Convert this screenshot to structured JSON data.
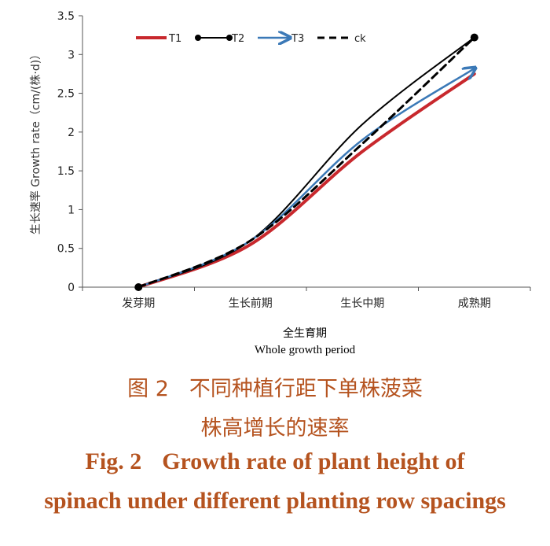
{
  "chart_data": {
    "type": "line",
    "categories": [
      "发芽期",
      "生长前期",
      "生长中期",
      "成熟期"
    ],
    "series": [
      {
        "name": "T1",
        "values": [
          0,
          0.55,
          1.75,
          2.75
        ],
        "color": "#c8282d"
      },
      {
        "name": "T2",
        "values": [
          0,
          0.6,
          2.1,
          3.22
        ],
        "color": "#000000"
      },
      {
        "name": "T3",
        "values": [
          0,
          0.6,
          1.9,
          2.82
        ],
        "color": "#3b79b7"
      },
      {
        "name": "ck",
        "values": [
          0,
          0.6,
          1.85,
          3.22
        ],
        "color": "#000000"
      }
    ],
    "ylim": [
      0,
      3.5
    ],
    "yticks": [
      "0",
      "0.5",
      "1",
      "1.5",
      "2",
      "2.5",
      "3",
      "3.5"
    ],
    "ylabel": "生长速率 Growth rate（cm/(株·d)）",
    "xlabel_cn": "全生育期",
    "xlabel_en": "Whole growth period",
    "legend_position": "top"
  },
  "caption": {
    "cn_fig": "图 2",
    "cn_line1": "不同种植行距下单株菠菜",
    "cn_line2": "株高增长的速率",
    "en_fig": "Fig. 2",
    "en_line1": "Growth rate of plant height of",
    "en_line2": "spinach under different planting row spacings"
  }
}
